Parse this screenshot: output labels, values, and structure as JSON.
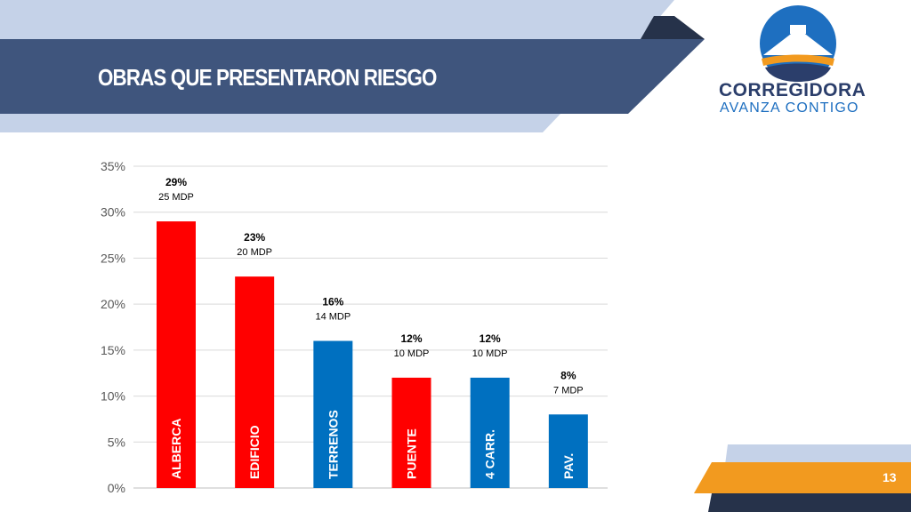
{
  "slide": {
    "title": "OBRAS QUE PRESENTARON RIESGO",
    "page_number": "13"
  },
  "logo": {
    "line1": "CORREGIDORA",
    "line2": "AVANZA CONTIGO",
    "colors": {
      "circle": "#1e6fc0",
      "navy": "#2b3e6b",
      "orange": "#f29a1f"
    }
  },
  "theme": {
    "banner": "#3f557d",
    "light_band": "#c5d2e8",
    "accent_orange": "#f29a1f"
  },
  "chart_data": {
    "type": "bar",
    "title": "",
    "xlabel": "",
    "ylabel": "",
    "ylim": [
      0,
      35
    ],
    "y_ticks": [
      {
        "value": 0,
        "label": "0%"
      },
      {
        "value": 5,
        "label": "5%"
      },
      {
        "value": 10,
        "label": "10%"
      },
      {
        "value": 15,
        "label": "15%"
      },
      {
        "value": 20,
        "label": "20%"
      },
      {
        "value": 25,
        "label": "25%"
      },
      {
        "value": 30,
        "label": "30%"
      },
      {
        "value": 35,
        "label": "35%"
      }
    ],
    "grid": true,
    "legend": "none",
    "categories": [
      "ALBERCA",
      "EDIFICIO",
      "TERRENOS",
      "PUENTE",
      "4 CARR.",
      "PAV."
    ],
    "values": [
      29,
      23,
      16,
      12,
      12,
      8
    ],
    "percent_labels": [
      "29%",
      "23%",
      "16%",
      "12%",
      "12%",
      "8%"
    ],
    "amount_labels": [
      "25 MDP",
      "20 MDP",
      "14 MDP",
      "10 MDP",
      "10 MDP",
      "7 MDP"
    ],
    "colors": [
      "#ff0000",
      "#ff0000",
      "#0070c0",
      "#ff0000",
      "#0070c0",
      "#0070c0"
    ]
  }
}
